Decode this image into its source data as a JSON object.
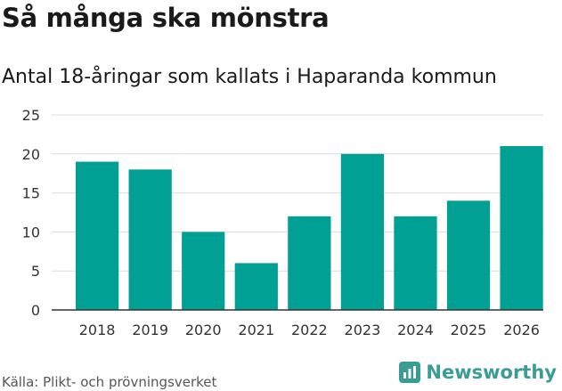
{
  "title": "Så många ska mönstra",
  "subtitle": "Antal 18-åringar som kallats i Haparanda kommun",
  "source": "Källa: Plikt- och prövningsverket",
  "brand": "Newsworthy",
  "colors": {
    "bar": "#00a095",
    "grid": "#dcdcdc",
    "axis": "#333333",
    "brand": "#3a9d95"
  },
  "chart_data": {
    "type": "bar",
    "title": "Så många ska mönstra",
    "subtitle": "Antal 18-åringar som kallats i Haparanda kommun",
    "xlabel": "",
    "ylabel": "",
    "categories": [
      "2018",
      "2019",
      "2020",
      "2021",
      "2022",
      "2023",
      "2024",
      "2025",
      "2026"
    ],
    "values": [
      19,
      18,
      10,
      6,
      12,
      20,
      12,
      14,
      21
    ],
    "ylim": [
      0,
      25
    ],
    "yticks": [
      0,
      5,
      10,
      15,
      20,
      25
    ],
    "grid": true,
    "legend": "none"
  }
}
